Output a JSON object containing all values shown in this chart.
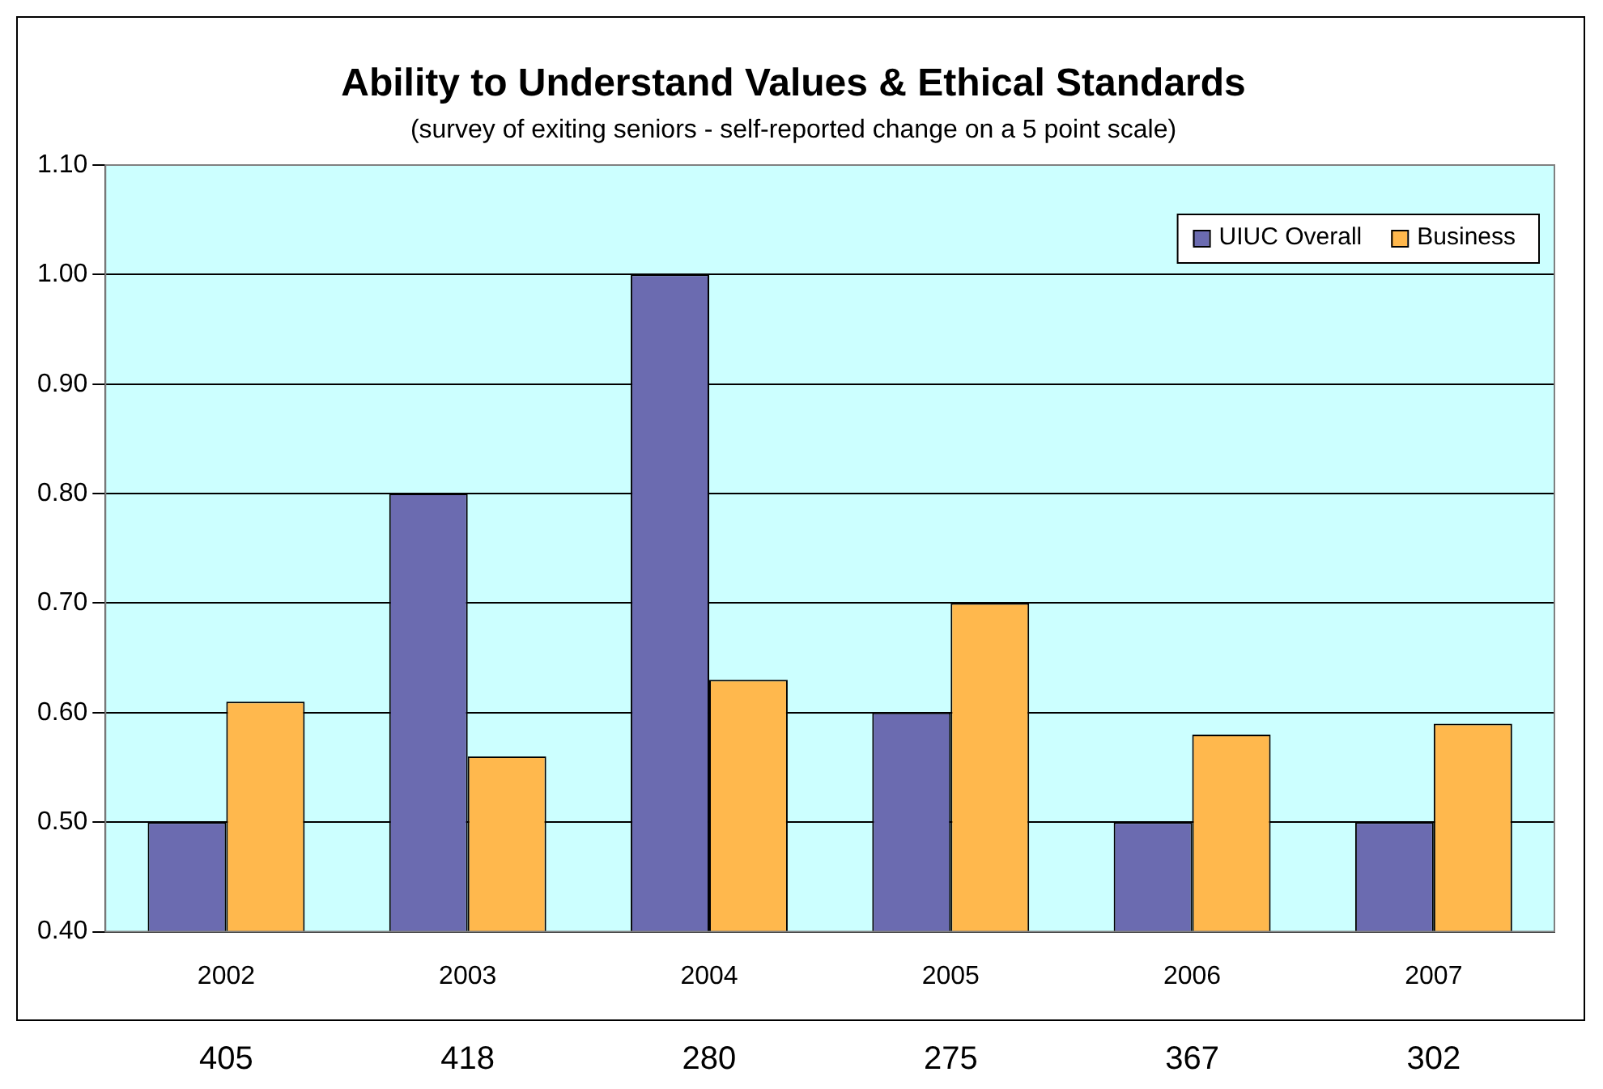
{
  "chart_data": {
    "type": "bar",
    "title": "Ability to Understand Values & Ethical Standards",
    "subtitle": "(survey of exiting seniors - self-reported change on a 5 point scale)",
    "categories": [
      "2002",
      "2003",
      "2004",
      "2005",
      "2006",
      "2007"
    ],
    "series": [
      {
        "name": "UIUC Overall",
        "color": "#6b6bb0",
        "values": [
          0.5,
          0.8,
          1.0,
          0.6,
          0.5,
          0.5
        ]
      },
      {
        "name": "Business",
        "color": "#ffb84d",
        "values": [
          0.61,
          0.56,
          0.63,
          0.7,
          0.58,
          0.59
        ]
      }
    ],
    "ylim": [
      0.4,
      1.1
    ],
    "yticks": [
      {
        "value": 0.4,
        "label": "0.40"
      },
      {
        "value": 0.5,
        "label": "0.50"
      },
      {
        "value": 0.6,
        "label": "0.60"
      },
      {
        "value": 0.7,
        "label": "0.70"
      },
      {
        "value": 0.8,
        "label": "0.80"
      },
      {
        "value": 0.9,
        "label": "0.90"
      },
      {
        "value": 1.0,
        "label": "1.00"
      },
      {
        "value": 1.1,
        "label": "1.10"
      }
    ],
    "grid": "y",
    "legend": "top right",
    "annotations": [
      {
        "text": "405",
        "x": "2002"
      },
      {
        "text": "418",
        "x": "2003"
      },
      {
        "text": "280",
        "x": "2004"
      },
      {
        "text": "275",
        "x": "2005"
      },
      {
        "text": "367",
        "x": "2006"
      },
      {
        "text": "302",
        "x": "2007"
      }
    ]
  }
}
